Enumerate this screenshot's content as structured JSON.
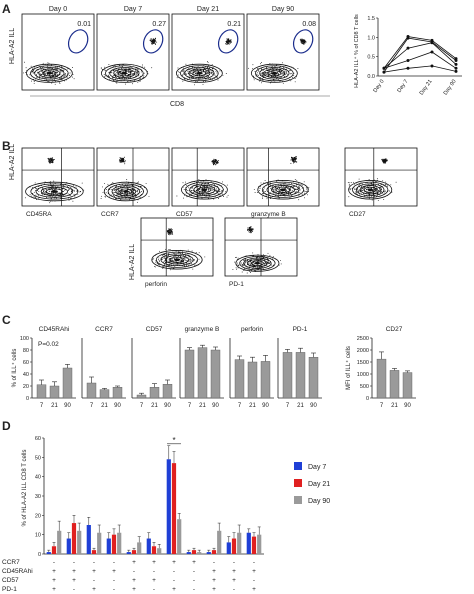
{
  "panel_letters": [
    "A",
    "B",
    "C",
    "D"
  ],
  "colors": {
    "day7": "#1f3fd6",
    "day21": "#e02020",
    "day90": "#9a9a9a",
    "bar_c": "#9a9a9a",
    "gate": "#1a2c8c"
  },
  "panel_a": {
    "y_label": "HLA-A2 ILL",
    "x_label": "CD8",
    "plots": [
      {
        "day": "Day 0",
        "pct": "0.01"
      },
      {
        "day": "Day 7",
        "pct": "0.27"
      },
      {
        "day": "Day 21",
        "pct": "0.21"
      },
      {
        "day": "Day 90",
        "pct": "0.08"
      }
    ]
  },
  "panel_b": {
    "y_label": "HLA-A2 ILL",
    "markers": [
      "CD45RA",
      "CCR7",
      "CD57",
      "granzyme B",
      "CD27",
      "perforin",
      "PD-1"
    ]
  },
  "chart_data": [
    {
      "type": "line",
      "ylabel": "HLA-A2 ILL⁺ % of CD8 T cells",
      "categories": [
        "Day 0",
        "Day 7",
        "Day 21",
        "Day 90"
      ],
      "ylim": [
        0,
        1.5
      ],
      "yticks": [
        "0.0",
        "0.5",
        "1.0",
        "1.5"
      ],
      "series": [
        {
          "values": [
            0.2,
            1.02,
            0.92,
            0.45
          ]
        },
        {
          "values": [
            0.1,
            0.98,
            0.88,
            0.4
          ]
        },
        {
          "values": [
            0.2,
            0.72,
            0.86,
            0.3
          ]
        },
        {
          "values": [
            0.2,
            0.4,
            0.62,
            0.2
          ]
        },
        {
          "values": [
            0.1,
            0.2,
            0.26,
            0.12
          ]
        }
      ]
    },
    {
      "type": "bar",
      "ylabel": "% of ILL⁺ cells",
      "ylim": [
        0,
        100
      ],
      "yticks": [
        "0",
        "20",
        "40",
        "60",
        "80",
        "100"
      ],
      "categories": [
        "7",
        "21",
        "90"
      ],
      "groups": [
        {
          "title": "CD45RAhi",
          "values": [
            22,
            20,
            50
          ],
          "errors": [
            8,
            7,
            6
          ],
          "annotation": "P=0.02"
        },
        {
          "title": "CCR7",
          "values": [
            25,
            14,
            18
          ],
          "errors": [
            10,
            2,
            2
          ]
        },
        {
          "title": "CD57",
          "values": [
            5,
            18,
            23
          ],
          "errors": [
            3,
            6,
            7
          ]
        },
        {
          "title": "granzyme B",
          "values": [
            80,
            84,
            80
          ],
          "errors": [
            4,
            4,
            5
          ]
        },
        {
          "title": "perforin",
          "values": [
            64,
            60,
            61
          ],
          "errors": [
            6,
            8,
            10
          ]
        },
        {
          "title": "PD-1",
          "values": [
            76,
            76,
            68
          ],
          "errors": [
            5,
            7,
            7
          ]
        }
      ]
    },
    {
      "type": "bar",
      "title": "CD27",
      "ylabel": "MFI of ILL⁺ cells",
      "ylim": [
        0,
        2500
      ],
      "yticks": [
        "0",
        "500",
        "1000",
        "1500",
        "2000",
        "2500"
      ],
      "categories": [
        "7",
        "21",
        "90"
      ],
      "values": [
        1620,
        1150,
        1060
      ],
      "errors": [
        300,
        80,
        70
      ]
    },
    {
      "type": "bar",
      "ylabel": "% of HLA-A2 ILL CD8 T cells",
      "ylim": [
        0,
        60
      ],
      "yticks": [
        "0",
        "10",
        "20",
        "30",
        "40",
        "50",
        "60"
      ],
      "legend": [
        "Day 7",
        "Day 21",
        "Day 90"
      ],
      "row_labels": [
        "CCR7",
        "CD45RAhi",
        "CD57",
        "PD-1"
      ],
      "significance": "*",
      "series": [
        {
          "name": "Day 7",
          "values": [
            1,
            8,
            15,
            8,
            1,
            8,
            49,
            1,
            1,
            6,
            11
          ],
          "errors": [
            1,
            3,
            4,
            3,
            1,
            3,
            7,
            1,
            1,
            3,
            2
          ]
        },
        {
          "name": "Day 21",
          "values": [
            4,
            16,
            2,
            10,
            2,
            4,
            47,
            2,
            2,
            8,
            9
          ],
          "errors": [
            2,
            4,
            1,
            3,
            1,
            2,
            6,
            1,
            1,
            3,
            2
          ]
        },
        {
          "name": "Day 90",
          "values": [
            12,
            12,
            11,
            11,
            6,
            3,
            18,
            1,
            12,
            11,
            10
          ],
          "errors": [
            5,
            4,
            4,
            4,
            3,
            2,
            3,
            1,
            4,
            4,
            4
          ]
        }
      ],
      "signs": [
        [
          "-",
          "-",
          "-",
          "-",
          "+",
          "+",
          "+",
          "+",
          "-",
          "-",
          "-"
        ],
        [
          "+",
          "+",
          "+",
          "+",
          "-",
          "-",
          "-",
          "-",
          "+",
          "+",
          "+"
        ],
        [
          "+",
          "+",
          "-",
          "-",
          "+",
          "+",
          "-",
          "-",
          "+",
          "+",
          "-"
        ],
        [
          "+",
          "-",
          "+",
          "-",
          "+",
          "-",
          "+",
          "-",
          "+",
          "-",
          "+"
        ]
      ]
    }
  ]
}
